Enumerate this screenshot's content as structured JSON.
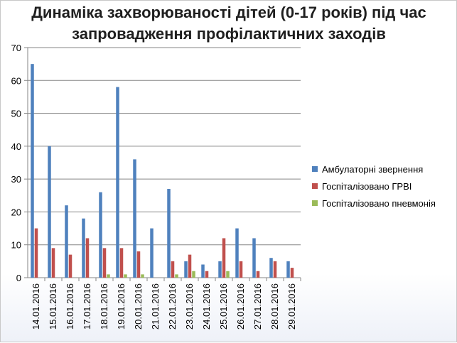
{
  "chart_data": {
    "type": "bar",
    "title": "Динаміка захворюваності дітей (0-17 років) під час запровадження профілактичних заходів",
    "title_lines": [
      "Динаміка захворюваності дітей (0-17 років) під час",
      "запровадження профілактичних заходів"
    ],
    "xlabel": "",
    "ylabel": "",
    "ylim": [
      0,
      70
    ],
    "yticks": [
      0,
      10,
      20,
      30,
      40,
      50,
      60,
      70
    ],
    "grid": true,
    "legend_position": "right",
    "categories": [
      "14.01.2016",
      "15.01.2016",
      "16.01.2016",
      "17.01.2016",
      "18.01.2016",
      "19.01.2016",
      "20.01.2016",
      "21.01.2016",
      "22.01.2016",
      "23.01.2016",
      "24.01.2016",
      "25.01.2016",
      "26.01.2016",
      "27.01.2016",
      "28.01.2016",
      "29.01.2016"
    ],
    "series": [
      {
        "name": "Амбулаторні звернення",
        "color": "#4f81bd",
        "values": [
          65,
          40,
          22,
          18,
          26,
          58,
          36,
          15,
          27,
          5,
          4,
          5,
          15,
          12,
          6,
          5
        ]
      },
      {
        "name": "Госпіталізовано ГРВІ",
        "color": "#c0504d",
        "values": [
          15,
          9,
          7,
          12,
          9,
          9,
          8,
          0,
          5,
          7,
          2,
          12,
          5,
          2,
          5,
          3
        ]
      },
      {
        "name": "Госпіталізовано пневмонія",
        "color": "#9bbb59",
        "values": [
          0,
          0,
          0,
          0,
          1,
          1,
          1,
          0,
          1,
          2,
          0,
          2,
          0,
          0,
          0,
          0
        ]
      }
    ]
  }
}
